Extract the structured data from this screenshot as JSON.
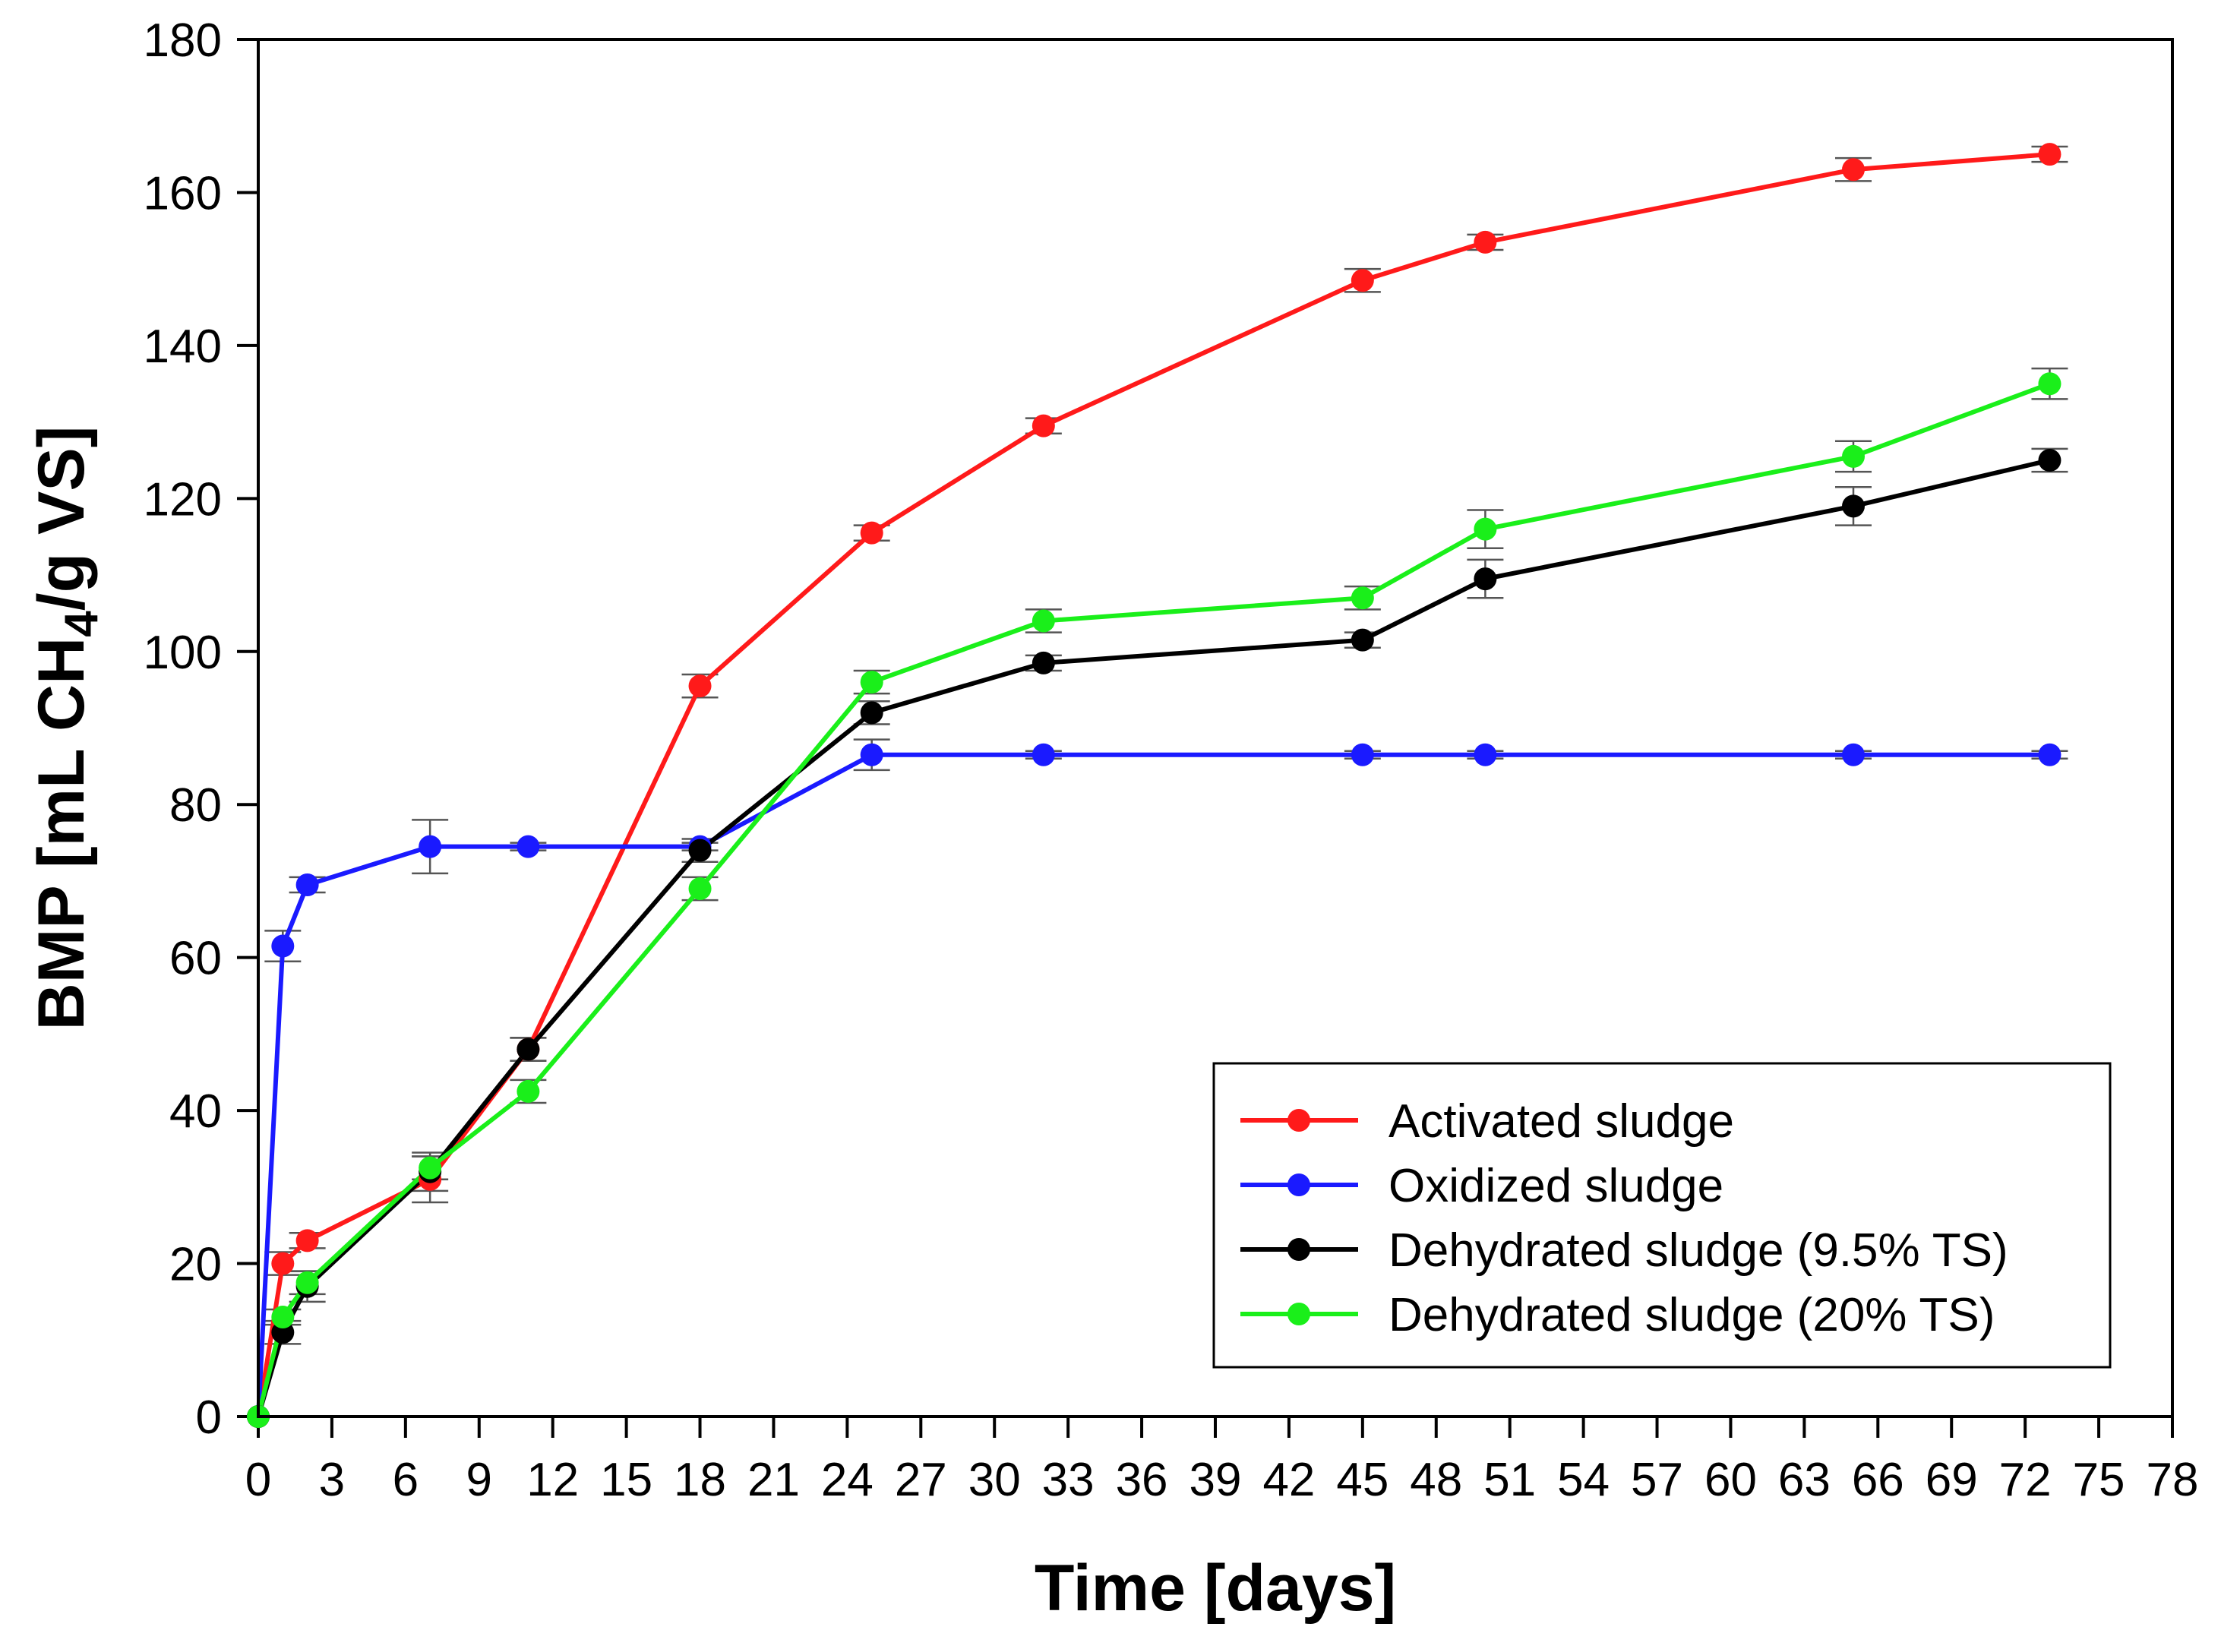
{
  "chart_data": {
    "type": "line",
    "title": "",
    "xlabel": "Time [days]",
    "ylabel_parts": {
      "prefix": "BMP [mL CH",
      "subscript": "4",
      "suffix": "/g VS]"
    },
    "xlim": [
      0,
      78
    ],
    "ylim": [
      0,
      180
    ],
    "xticks": [
      0,
      3,
      6,
      9,
      12,
      15,
      18,
      21,
      24,
      27,
      30,
      33,
      36,
      39,
      42,
      45,
      48,
      51,
      54,
      57,
      60,
      63,
      66,
      69,
      72,
      75,
      78
    ],
    "yticks": [
      0,
      20,
      40,
      60,
      80,
      100,
      120,
      140,
      160,
      180
    ],
    "legend_position": "bottom-right",
    "grid": false,
    "series": [
      {
        "name": "Activated sludge",
        "color": "#ff1a1a",
        "x": [
          0,
          1,
          2,
          7,
          11,
          18,
          25,
          32,
          45,
          50,
          65,
          73
        ],
        "y": [
          0,
          20,
          23,
          31,
          48,
          95.5,
          115.5,
          129.5,
          148.5,
          153.5,
          163,
          165
        ],
        "err": [
          0,
          1.5,
          1,
          3,
          1.5,
          1.5,
          1,
          1,
          1.5,
          1,
          1.5,
          1
        ]
      },
      {
        "name": "Oxidized sludge",
        "color": "#1a1aff",
        "x": [
          0,
          1,
          2,
          7,
          11,
          18,
          25,
          32,
          45,
          50,
          65,
          73
        ],
        "y": [
          0,
          61.5,
          69.5,
          74.5,
          74.5,
          74.5,
          86.5,
          86.5,
          86.5,
          86.5,
          86.5,
          86.5
        ],
        "err": [
          0,
          2,
          1,
          3.5,
          0.5,
          0.5,
          2,
          0.5,
          0.5,
          0.5,
          0.5,
          0.5
        ]
      },
      {
        "name": "Dehydrated sludge (9.5% TS)",
        "color": "#000000",
        "x": [
          0,
          1,
          2,
          7,
          11,
          18,
          25,
          32,
          45,
          50,
          65,
          73
        ],
        "y": [
          0,
          11,
          17,
          32,
          48,
          74,
          92,
          98.5,
          101.5,
          109.5,
          119,
          125
        ],
        "err": [
          0,
          1.5,
          2,
          2.5,
          1.5,
          1.5,
          1.5,
          1,
          1,
          2.5,
          2.5,
          1.5
        ]
      },
      {
        "name": "Dehydrated sludge (20% TS)",
        "color": "#1aef1a",
        "x": [
          0,
          1,
          2,
          7,
          11,
          18,
          25,
          32,
          45,
          50,
          65,
          73
        ],
        "y": [
          0,
          13,
          17.5,
          32.5,
          42.5,
          69,
          96,
          104,
          107,
          116,
          125.5,
          135
        ],
        "err": [
          0,
          1,
          1.5,
          1.5,
          1.5,
          1.5,
          1.5,
          1.5,
          1.5,
          2.5,
          2,
          2
        ]
      }
    ]
  }
}
